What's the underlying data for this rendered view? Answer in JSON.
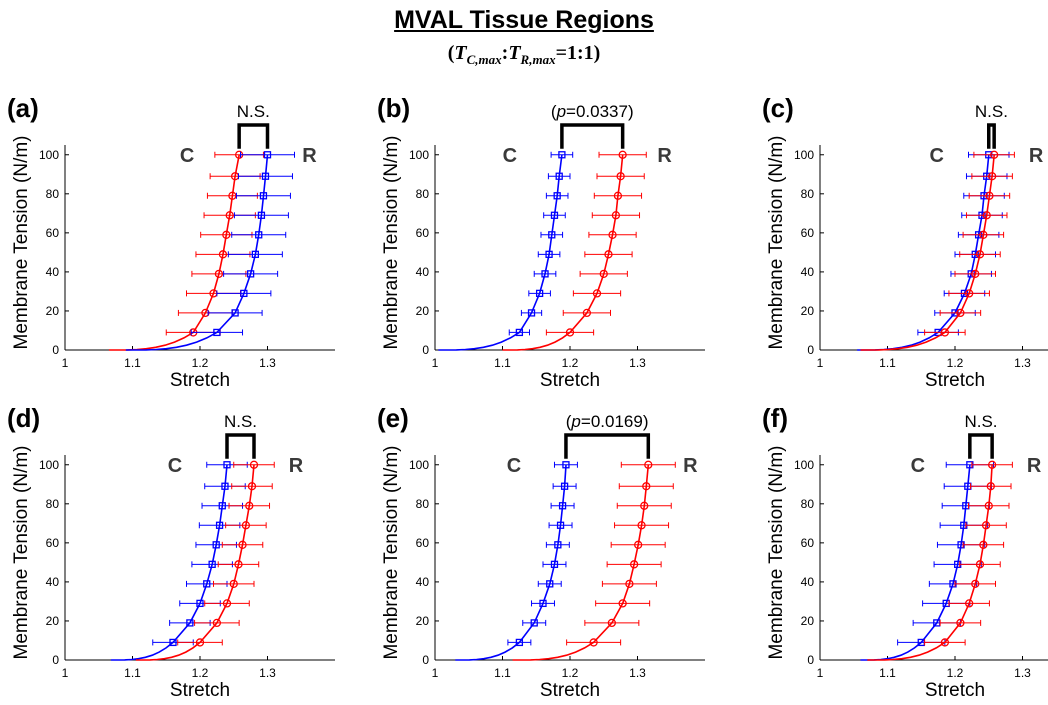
{
  "figure": {
    "title": "MVAL Tissue Regions",
    "subtitle_parts": [
      "(",
      "T",
      "C,max",
      ":",
      "T",
      "R,max",
      "=1:1)"
    ]
  },
  "colors": {
    "blue": "#0000ff",
    "red": "#ff0000",
    "axis": "#000000",
    "group_label": "#3a3a3a"
  },
  "chart_data": [
    {
      "panel": "(a)",
      "type": "line",
      "xlabel": "Stretch",
      "ylabel": "Membrane Tension (N/m)",
      "xlim": [
        1,
        1.4
      ],
      "ylim": [
        0,
        105
      ],
      "xticks": [
        1,
        1.1,
        1.2,
        1.3
      ],
      "yticks": [
        0,
        20,
        40,
        60,
        80,
        100
      ],
      "significance": "N.S.",
      "bracket": [
        1.258,
        1.3
      ],
      "groups": [
        {
          "label": "C",
          "color": "red",
          "marker": "circle",
          "side": "left",
          "curve_start": 1.065,
          "x": [
            1.19,
            1.208,
            1.22,
            1.228,
            1.234,
            1.239,
            1.244,
            1.248,
            1.252,
            1.258
          ],
          "y": [
            9,
            19,
            29,
            39,
            49,
            59,
            69,
            79,
            89,
            100
          ],
          "err": [
            0.04,
            0.04,
            0.04,
            0.04,
            0.04,
            0.038,
            0.038,
            0.037,
            0.037,
            0.036
          ]
        },
        {
          "label": "R",
          "color": "blue",
          "marker": "square",
          "side": "right",
          "curve_start": 1.09,
          "x": [
            1.225,
            1.252,
            1.265,
            1.275,
            1.282,
            1.287,
            1.291,
            1.294,
            1.297,
            1.3
          ],
          "y": [
            9,
            19,
            29,
            39,
            49,
            59,
            69,
            79,
            89,
            100
          ],
          "err": [
            0.038,
            0.04,
            0.04,
            0.04,
            0.04,
            0.04,
            0.04,
            0.04,
            0.04,
            0.04
          ]
        }
      ]
    },
    {
      "panel": "(b)",
      "type": "line",
      "xlabel": "Stretch",
      "ylabel": "Membrane Tension (N/m)",
      "xlim": [
        1,
        1.4
      ],
      "ylim": [
        0,
        105
      ],
      "xticks": [
        1,
        1.1,
        1.2,
        1.3
      ],
      "yticks": [
        0,
        20,
        40,
        60,
        80,
        100
      ],
      "significance": "(p=0.0337)",
      "bracket": [
        1.188,
        1.278
      ],
      "groups": [
        {
          "label": "C",
          "color": "blue",
          "marker": "square",
          "side": "left",
          "curve_start": 1.005,
          "x": [
            1.125,
            1.143,
            1.155,
            1.163,
            1.169,
            1.173,
            1.177,
            1.181,
            1.184,
            1.188
          ],
          "y": [
            9,
            19,
            29,
            39,
            49,
            59,
            69,
            79,
            89,
            100
          ],
          "err": [
            0.015,
            0.015,
            0.016,
            0.016,
            0.016,
            0.016,
            0.016,
            0.016,
            0.016,
            0.016
          ]
        },
        {
          "label": "R",
          "color": "red",
          "marker": "circle",
          "side": "right",
          "curve_start": 1.1,
          "x": [
            1.2,
            1.225,
            1.24,
            1.25,
            1.257,
            1.263,
            1.268,
            1.271,
            1.275,
            1.278
          ],
          "y": [
            9,
            19,
            29,
            39,
            49,
            59,
            69,
            79,
            89,
            100
          ],
          "err": [
            0.035,
            0.035,
            0.035,
            0.035,
            0.035,
            0.035,
            0.035,
            0.035,
            0.035,
            0.035
          ]
        }
      ]
    },
    {
      "panel": "(c)",
      "type": "line",
      "xlabel": "Stretch",
      "ylabel": "Membrane Tension (N/m)",
      "xlim": [
        1,
        1.4
      ],
      "ylim": [
        0,
        105
      ],
      "xticks": [
        1,
        1.1,
        1.2,
        1.3
      ],
      "yticks": [
        0,
        20,
        40,
        60,
        80,
        100
      ],
      "significance": "N.S.",
      "bracket": [
        1.25,
        1.258
      ],
      "groups": [
        {
          "label": "C",
          "color": "blue",
          "marker": "square",
          "side": "left",
          "curve_start": 1.055,
          "x": [
            1.175,
            1.2,
            1.214,
            1.224,
            1.23,
            1.235,
            1.24,
            1.243,
            1.247,
            1.25
          ],
          "y": [
            9,
            19,
            29,
            39,
            49,
            59,
            69,
            79,
            89,
            100
          ],
          "err": [
            0.03,
            0.03,
            0.03,
            0.03,
            0.03,
            0.03,
            0.03,
            0.03,
            0.03,
            0.03
          ]
        },
        {
          "label": "R",
          "color": "red",
          "marker": "circle",
          "side": "right",
          "curve_start": 1.06,
          "x": [
            1.185,
            1.208,
            1.221,
            1.23,
            1.237,
            1.242,
            1.247,
            1.251,
            1.255,
            1.258
          ],
          "y": [
            9,
            19,
            29,
            39,
            49,
            59,
            69,
            79,
            89,
            100
          ],
          "err": [
            0.03,
            0.03,
            0.03,
            0.03,
            0.03,
            0.03,
            0.03,
            0.03,
            0.03,
            0.03
          ]
        }
      ]
    },
    {
      "panel": "(d)",
      "type": "line",
      "xlabel": "Stretch",
      "ylabel": "Membrane Tension (N/m)",
      "xlim": [
        1,
        1.4
      ],
      "ylim": [
        0,
        105
      ],
      "xticks": [
        1,
        1.1,
        1.2,
        1.3
      ],
      "yticks": [
        0,
        20,
        40,
        60,
        80,
        100
      ],
      "significance": "N.S.",
      "bracket": [
        1.24,
        1.28
      ],
      "groups": [
        {
          "label": "C",
          "color": "blue",
          "marker": "square",
          "side": "left",
          "curve_start": 1.068,
          "x": [
            1.16,
            1.185,
            1.2,
            1.21,
            1.218,
            1.224,
            1.229,
            1.233,
            1.237,
            1.24
          ],
          "y": [
            9,
            19,
            29,
            39,
            49,
            59,
            69,
            79,
            89,
            100
          ],
          "err": [
            0.03,
            0.03,
            0.03,
            0.03,
            0.03,
            0.03,
            0.03,
            0.03,
            0.03,
            0.03
          ]
        },
        {
          "label": "R",
          "color": "red",
          "marker": "circle",
          "side": "right",
          "curve_start": 1.105,
          "x": [
            1.2,
            1.225,
            1.24,
            1.25,
            1.257,
            1.263,
            1.268,
            1.273,
            1.277,
            1.28
          ],
          "y": [
            9,
            19,
            29,
            39,
            49,
            59,
            69,
            79,
            89,
            100
          ],
          "err": [
            0.033,
            0.033,
            0.033,
            0.03,
            0.03,
            0.03,
            0.03,
            0.03,
            0.03,
            0.03
          ]
        }
      ]
    },
    {
      "panel": "(e)",
      "type": "line",
      "xlabel": "Stretch",
      "ylabel": "Membrane Tension (N/m)",
      "xlim": [
        1,
        1.4
      ],
      "ylim": [
        0,
        105
      ],
      "xticks": [
        1,
        1.1,
        1.2,
        1.3
      ],
      "yticks": [
        0,
        20,
        40,
        60,
        80,
        100
      ],
      "significance": "(p=0.0169)",
      "bracket": [
        1.194,
        1.316
      ],
      "groups": [
        {
          "label": "C",
          "color": "blue",
          "marker": "square",
          "side": "left",
          "curve_start": 1.03,
          "x": [
            1.125,
            1.147,
            1.16,
            1.17,
            1.177,
            1.182,
            1.186,
            1.189,
            1.192,
            1.194
          ],
          "y": [
            9,
            19,
            29,
            39,
            49,
            59,
            69,
            79,
            89,
            100
          ],
          "err": [
            0.017,
            0.017,
            0.017,
            0.017,
            0.017,
            0.017,
            0.017,
            0.017,
            0.017,
            0.017
          ]
        },
        {
          "label": "R",
          "color": "red",
          "marker": "circle",
          "side": "right",
          "curve_start": 1.115,
          "x": [
            1.235,
            1.262,
            1.278,
            1.288,
            1.295,
            1.301,
            1.306,
            1.31,
            1.313,
            1.316
          ],
          "y": [
            9,
            19,
            29,
            39,
            49,
            59,
            69,
            79,
            89,
            100
          ],
          "err": [
            0.04,
            0.04,
            0.04,
            0.04,
            0.04,
            0.04,
            0.04,
            0.04,
            0.04,
            0.04
          ]
        }
      ]
    },
    {
      "panel": "(f)",
      "type": "line",
      "xlabel": "Stretch",
      "ylabel": "Membrane Tension (N/m)",
      "xlim": [
        1,
        1.4
      ],
      "ylim": [
        0,
        105
      ],
      "xticks": [
        1,
        1.1,
        1.2,
        1.3
      ],
      "yticks": [
        0,
        20,
        40,
        60,
        80,
        100
      ],
      "significance": "N.S.",
      "bracket": [
        1.222,
        1.255
      ],
      "groups": [
        {
          "label": "C",
          "color": "blue",
          "marker": "square",
          "side": "left",
          "curve_start": 1.06,
          "x": [
            1.15,
            1.173,
            1.187,
            1.197,
            1.204,
            1.209,
            1.213,
            1.216,
            1.219,
            1.222
          ],
          "y": [
            9,
            19,
            29,
            39,
            49,
            59,
            69,
            79,
            89,
            100
          ],
          "err": [
            0.035,
            0.035,
            0.035,
            0.035,
            0.035,
            0.035,
            0.035,
            0.035,
            0.035,
            0.035
          ]
        },
        {
          "label": "R",
          "color": "red",
          "marker": "circle",
          "side": "right",
          "curve_start": 1.07,
          "x": [
            1.185,
            1.208,
            1.221,
            1.23,
            1.237,
            1.242,
            1.246,
            1.25,
            1.253,
            1.255
          ],
          "y": [
            9,
            19,
            29,
            39,
            49,
            59,
            69,
            79,
            89,
            100
          ],
          "err": [
            0.03,
            0.03,
            0.03,
            0.03,
            0.03,
            0.03,
            0.03,
            0.03,
            0.03,
            0.03
          ]
        }
      ]
    }
  ]
}
